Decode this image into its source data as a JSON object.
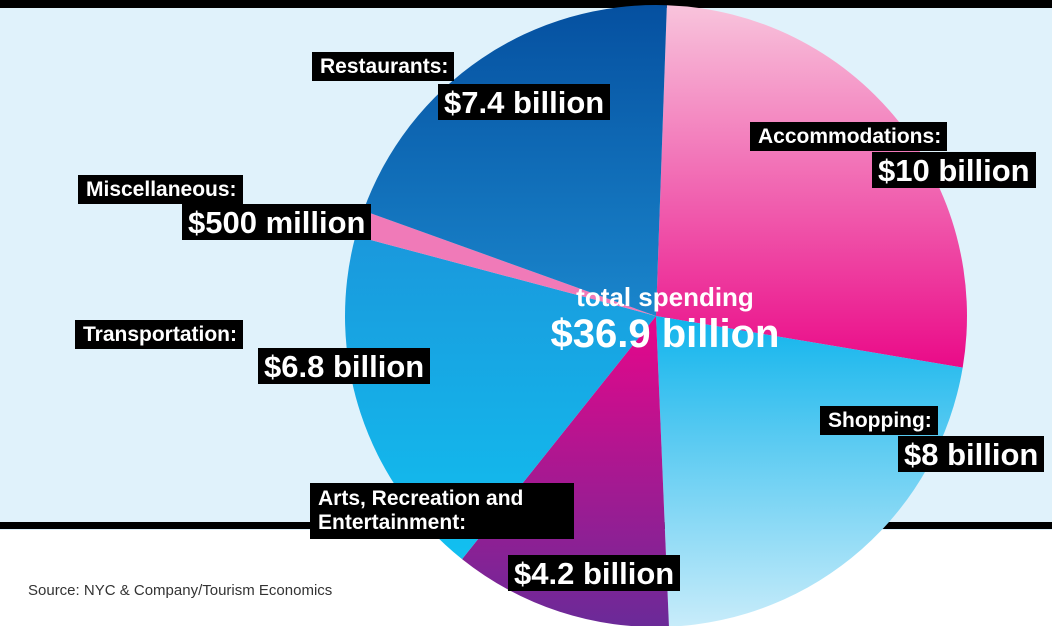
{
  "chart_data": {
    "type": "pie",
    "categories": [
      "Accommodations:",
      "Shopping:",
      "Arts, Recreation and Entertainment:",
      "Transportation:",
      "Miscellaneous:",
      "Restaurants:"
    ],
    "values": [
      10,
      8,
      4.2,
      6.8,
      0.5,
      7.4
    ],
    "value_labels": [
      "$10 billion",
      "$8 billion",
      "$4.2 billion",
      "$6.8 billion",
      "$500 million",
      "$7.4 billion"
    ],
    "colors": [
      "#f05aa8",
      "#3cc0f0",
      "#b0168c",
      "#18aae8",
      "#f07ab8",
      "#0a6ab8"
    ],
    "center_title": "total spending",
    "center_value_label": "$36.9 billion",
    "source": "Source: NYC & Company/Tourism Economics"
  }
}
